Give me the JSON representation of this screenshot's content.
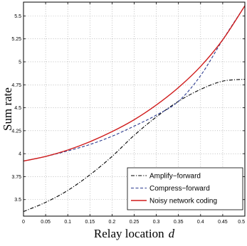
{
  "chart_data": {
    "type": "line",
    "xlabel": "Relay location",
    "xlabel_var": "d",
    "ylabel": "Sum rate",
    "xlim": [
      0,
      0.5
    ],
    "ylim": [
      3.32,
      5.65
    ],
    "x_ticks": [
      0,
      0.05,
      0.1,
      0.15,
      0.2,
      0.25,
      0.3,
      0.35,
      0.4,
      0.45,
      0.5
    ],
    "x_tick_labels": [
      "0",
      "0.05",
      "0.1",
      "0.15",
      "0.2",
      "0.25",
      "0.3",
      "0.35",
      "0.4",
      "0.45",
      "0.5"
    ],
    "y_ticks": [
      3.5,
      3.75,
      4,
      4.25,
      4.5,
      4.75,
      5,
      5.25,
      5.5
    ],
    "y_tick_labels": [
      "3.5",
      "3.75",
      "4",
      "4.25",
      "4.5",
      "4.75",
      "5",
      "5.25",
      "5.5"
    ],
    "grid": true,
    "legend_position": "bottom-right",
    "series": [
      {
        "name": "Amplify−forward",
        "color": "#000000",
        "style": "dashdot",
        "x": [
          0,
          0.05,
          0.1,
          0.15,
          0.2,
          0.25,
          0.3,
          0.35,
          0.4,
          0.45,
          0.5
        ],
        "y": [
          3.37,
          3.47,
          3.6,
          3.77,
          3.97,
          4.2,
          4.4,
          4.57,
          4.7,
          4.79,
          4.81
        ]
      },
      {
        "name": "Compress−forward",
        "color": "#2b3a8f",
        "style": "dashed",
        "x": [
          0,
          0.05,
          0.1,
          0.15,
          0.2,
          0.25,
          0.3,
          0.35,
          0.4,
          0.45,
          0.5
        ],
        "y": [
          3.92,
          3.97,
          4.03,
          4.1,
          4.19,
          4.3,
          4.42,
          4.57,
          4.85,
          5.24,
          5.61
        ]
      },
      {
        "name": "Noisy network coding",
        "color": "#d01c1c",
        "style": "solid",
        "x": [
          0,
          0.05,
          0.1,
          0.15,
          0.2,
          0.25,
          0.3,
          0.35,
          0.4,
          0.45,
          0.5
        ],
        "y": [
          3.92,
          3.97,
          4.04,
          4.13,
          4.24,
          4.37,
          4.53,
          4.72,
          4.95,
          5.24,
          5.61
        ]
      }
    ]
  }
}
